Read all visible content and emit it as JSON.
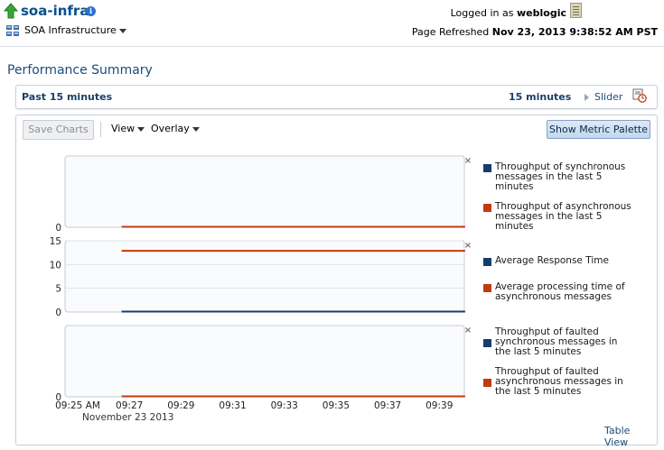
{
  "header": {
    "app_title": "soa-infra",
    "domain_menu": "SOA Infrastructure",
    "logged_in_label": "Logged in as",
    "logged_in_user": "weblogic",
    "refreshed_label": "Page Refreshed",
    "refreshed_time": "Nov 23, 2013 9:38:52 AM PST"
  },
  "page": {
    "section_title": "Performance Summary"
  },
  "range_bar": {
    "label": "Past 15 minutes",
    "value": "15 minutes",
    "slider_link": "Slider"
  },
  "toolbar": {
    "save_charts": "Save Charts",
    "view_menu": "View",
    "overlay_menu": "Overlay",
    "metric_palette": "Show Metric Palette"
  },
  "footer": {
    "table_view": "Table View"
  },
  "colors": {
    "navy": "#173e6b",
    "orange": "#c23b0f",
    "grid": "#dfe3e8"
  },
  "chart_data": [
    {
      "type": "line",
      "title": "",
      "ylim": [
        0,
        1
      ],
      "yticks": [
        0
      ],
      "series": [
        {
          "name": "Throughput of synchronous messages in the last 5 minutes",
          "color": "#173e6b",
          "points": []
        },
        {
          "name": "Throughput of asynchronous messages in the last 5 minutes",
          "color": "#c23b0f",
          "points": [
            [
              1.7,
              0
            ],
            [
              15,
              0
            ]
          ]
        }
      ]
    },
    {
      "type": "line",
      "title": "",
      "ylim": [
        0,
        15
      ],
      "yticks": [
        0,
        5,
        10,
        15
      ],
      "series": [
        {
          "name": "Average Response Time",
          "color": "#173e6b",
          "points": [
            [
              1.7,
              0
            ],
            [
              15,
              0
            ]
          ]
        },
        {
          "name": "Average processing time of asynchronous messages",
          "color": "#c23b0f",
          "points": [
            [
              1.7,
              12.8
            ],
            [
              15,
              12.8
            ]
          ]
        }
      ]
    },
    {
      "type": "line",
      "title": "",
      "ylim": [
        0,
        1
      ],
      "yticks": [
        0
      ],
      "series": [
        {
          "name": "Throughput of faulted synchronous messages in the last 5 minutes",
          "color": "#173e6b",
          "points": []
        },
        {
          "name": "Throughput of faulted asynchronous messages in the last 5 minutes",
          "color": "#c23b0f",
          "points": [
            [
              1.7,
              0
            ],
            [
              15,
              0
            ]
          ]
        }
      ]
    }
  ],
  "x_axis": {
    "ticks": [
      {
        "minute": 0,
        "label": "09:25 AM"
      },
      {
        "minute": 2,
        "label": "09:27"
      },
      {
        "minute": 4,
        "label": "09:29"
      },
      {
        "minute": 6,
        "label": "09:31"
      },
      {
        "minute": 8,
        "label": "09:33"
      },
      {
        "minute": 10,
        "label": "09:35"
      },
      {
        "minute": 12,
        "label": "09:37"
      },
      {
        "minute": 14,
        "label": "09:39"
      }
    ],
    "range": [
      0,
      14.9
    ],
    "date_label": "November 23 2013"
  }
}
